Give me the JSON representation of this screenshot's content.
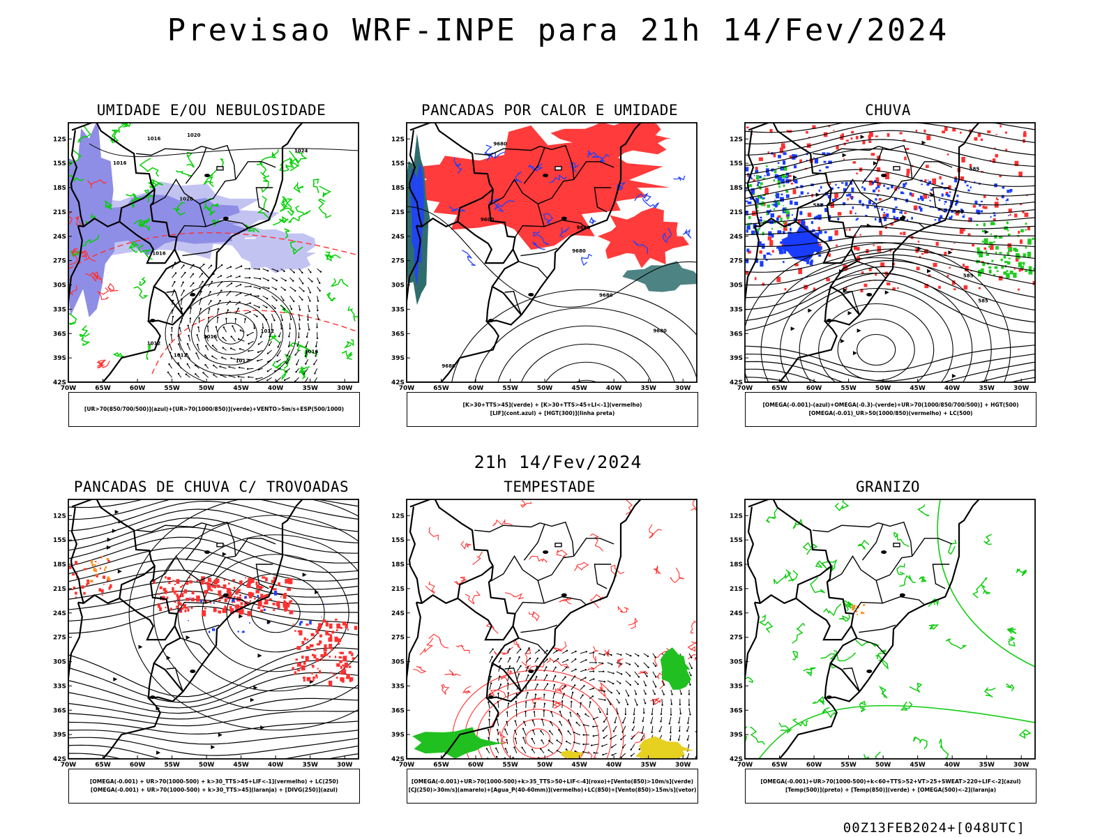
{
  "page": {
    "title": "Previsao WRF-INPE  para 21h 14/Fev/2024",
    "subtitle": "21h 14/Fev/2024",
    "footer": "00Z13FEB2024+[048UTC]"
  },
  "axes": {
    "lat_labels": [
      "12S",
      "15S",
      "18S",
      "21S",
      "24S",
      "27S",
      "30S",
      "33S",
      "36S",
      "39S",
      "42S"
    ],
    "lon_labels": [
      "70W",
      "65W",
      "60W",
      "55W",
      "50W",
      "45W",
      "40W",
      "35W",
      "30W"
    ]
  },
  "panels": [
    {
      "title": "UMIDADE E/OU NEBULOSIDADE",
      "legend": [
        "[UR>70(850/700/500)](azul)+[UR>70(1000/850)](verde)+VENTO>5m/s+ESP(500/1000)"
      ],
      "contour_labels": [
        "1012",
        "1012",
        "1012",
        "1012",
        "1016",
        "1016",
        "1016",
        "1016",
        "1020",
        "1020",
        "1024",
        "1016"
      ],
      "colors": {
        "fill": "#8e8ee6",
        "fill2": "#c3c3f2",
        "green": "#00d000",
        "red": "#ff3030"
      }
    },
    {
      "title": "PANCADAS POR CALOR E UMIDADE",
      "legend": [
        "[K>30+TTS>45](verde) + [K>30+TTS>45+LI<-1](vermelho)",
        "[LIF](cont.azul) + [HGT(300)](linha preta)"
      ],
      "contour_labels": [
        "9680",
        "9680",
        "9680",
        "9600",
        "9680",
        "9680",
        "9680"
      ],
      "colors": {
        "red": "#ff3b3b",
        "teal": "#2f6d6d",
        "blue": "#2040ff"
      }
    },
    {
      "title": "CHUVA",
      "legend": [
        "[OMEGA(-0.001)-(azul)+OMEGA(-0.3)-(verde)+UR>70(1000/850/700/500)] + HGT(500)",
        "[OMEGA(-0.01)_UR>50(1000/850)(vermelho) + LC(500)"
      ],
      "contour_labels": [
        "585",
        "585",
        "585",
        "585",
        "588"
      ],
      "colors": {
        "red": "#ff3030",
        "blue": "#1a3cff",
        "green": "#20cc20"
      }
    },
    {
      "title": "PANCADAS DE CHUVA C/ TROVOADAS",
      "legend": [
        "[OMEGA(-0.001) + UR>70(1000-500) + k>30_TTS>45+LIF<-1](vermelho) + LC(250)",
        "[OMEGA(-0.001) + UR>70(1000-500) + k>30_TTS>45](laranja) + [DIVG(250)](azul)"
      ],
      "colors": {
        "red": "#ff3030",
        "orange": "#ff9020",
        "blue": "#2040ff"
      }
    },
    {
      "title": "TEMPESTADE",
      "legend": [
        "[OMEGA(-0.001)+UR>70(1000-500)+k>35_TTS>50+LIF<-4](roxo)+[Vento(850)>10m/s](verde)",
        "[CJ(250)>30m/s](amarelo)+[Agua_P(40-60mm)](vermelho)+LC(850)+[Vento(850)>15m/s](vetor)"
      ],
      "colors": {
        "red": "#ff3030",
        "green": "#20c020",
        "yellow": "#e6d020"
      }
    },
    {
      "title": "GRANIZO",
      "legend": [
        "[OMEGA(-0.001)+UR>70(1000-500)+k<60+TTS>52+VT>25+SWEAT>220+LIF<-2](azul)",
        "[Temp(500)](preto) + [Temp(850)](verde) + [OMEGA(500)<-2](laranja)"
      ],
      "colors": {
        "green": "#10cc10",
        "orange": "#ff9020"
      }
    }
  ]
}
